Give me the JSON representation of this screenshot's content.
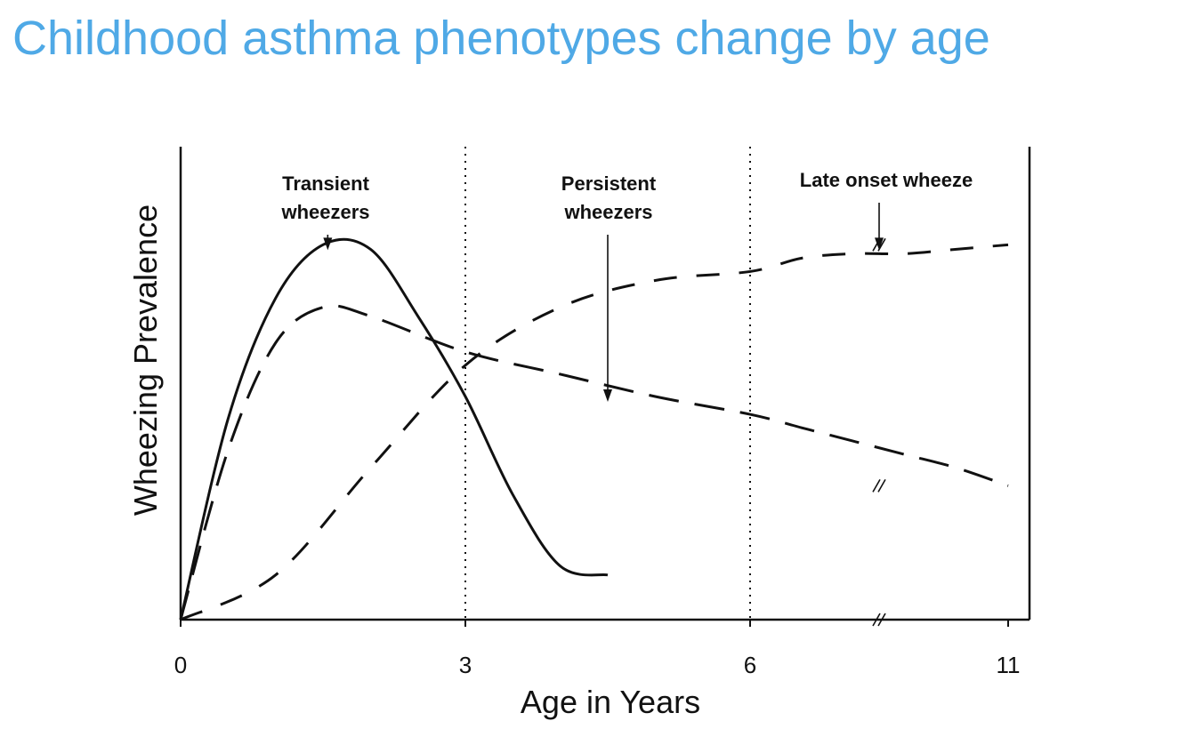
{
  "title": "Childhood asthma phenotypes change by age",
  "colors": {
    "title": "#4fa9e6",
    "ink": "#111111"
  },
  "chart_data": {
    "type": "line",
    "xlabel": "Age in Years",
    "ylabel": "Wheezing Prevalence",
    "x_ticks": [
      {
        "value": 0,
        "label": "0"
      },
      {
        "value": 3,
        "label": "3"
      },
      {
        "value": 6,
        "label": "6"
      },
      {
        "value": 11,
        "label": "11"
      }
    ],
    "xlim": [
      0,
      11
    ],
    "ylim": [
      0,
      100
    ],
    "vertical_reference_lines": [
      3,
      6
    ],
    "grid": false,
    "series": [
      {
        "style": "solid",
        "x": [
          0,
          0.5,
          1,
          1.5,
          2,
          2.5,
          3,
          3.5,
          4,
          4.5
        ],
        "y": [
          0,
          45,
          72,
          84,
          83,
          68,
          50,
          28,
          12,
          10
        ]
      },
      {
        "style": "long-dash",
        "x": [
          0,
          0.5,
          1,
          1.5,
          2,
          3,
          4,
          5,
          6,
          7,
          8,
          9,
          10,
          11
        ],
        "y": [
          0,
          38,
          62,
          70,
          68,
          60,
          55,
          50,
          46,
          43,
          40,
          37,
          34,
          30
        ]
      },
      {
        "style": "dash",
        "x": [
          0,
          1,
          2,
          3,
          4,
          5,
          6,
          7,
          8,
          9,
          10,
          11
        ],
        "y": [
          0,
          10,
          34,
          57,
          70,
          76,
          78,
          81,
          82,
          82,
          83,
          84
        ]
      }
    ],
    "annotations": [
      {
        "lines": [
          "Transient",
          "wheezers"
        ],
        "x": 1.55,
        "y": 82
      },
      {
        "lines": [
          "Persistent",
          "wheezers"
        ],
        "x": 4.5,
        "y": 48
      },
      {
        "lines": [
          "Late onset wheeze"
        ],
        "x": 8.5,
        "y": 82
      }
    ],
    "break_marks_at_x": 8.5
  }
}
